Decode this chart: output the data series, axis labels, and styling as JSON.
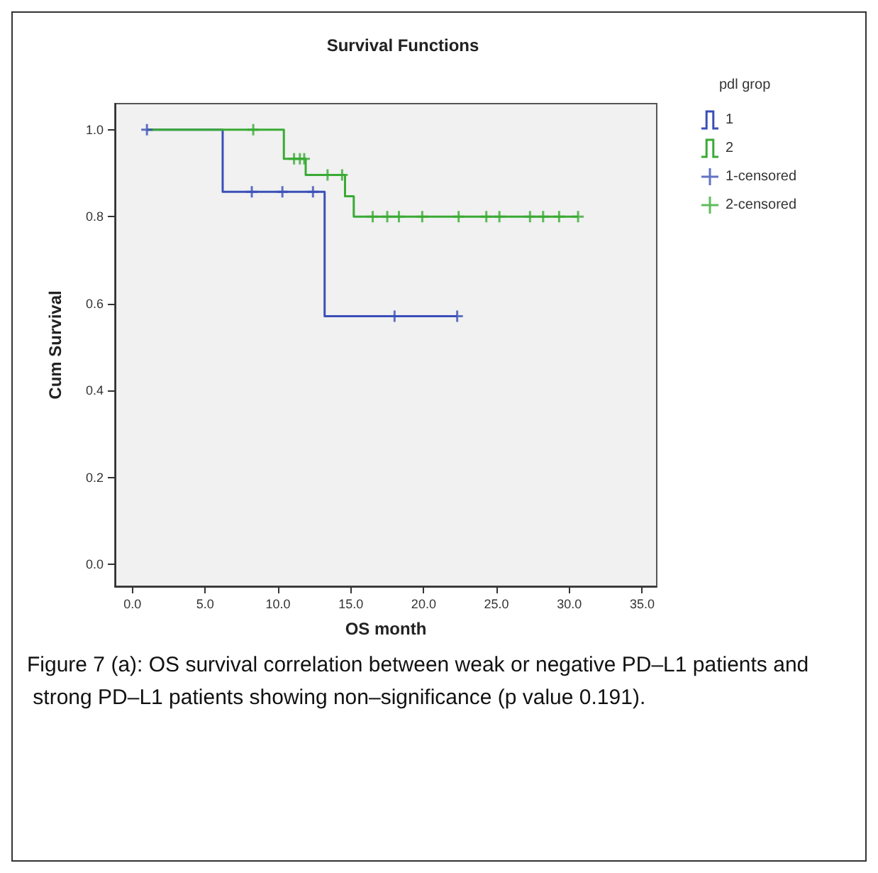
{
  "chart_data": {
    "type": "step",
    "title": "Survival Functions",
    "xlabel": "OS month",
    "ylabel": "Cum Survival",
    "legend_title": "pdl grop",
    "legend": "top right",
    "grid": false,
    "xlim": [
      -1.2,
      36
    ],
    "xticks": [
      {
        "value": 0,
        "label": "0.0"
      },
      {
        "value": 5,
        "label": "5.0"
      },
      {
        "value": 10,
        "label": "10.0"
      },
      {
        "value": 15,
        "label": "15.0"
      },
      {
        "value": 20,
        "label": "20.0"
      },
      {
        "value": 25,
        "label": "25.0"
      },
      {
        "value": 30,
        "label": "30.0"
      },
      {
        "value": 35,
        "label": "35.0"
      }
    ],
    "ylim": [
      -0.05,
      1.06
    ],
    "yticks": [
      {
        "value": 0,
        "label": "0.0"
      },
      {
        "value": 0.2,
        "label": "0.2"
      },
      {
        "value": 0.4,
        "label": "0.4"
      },
      {
        "value": 0.6,
        "label": "0.6"
      },
      {
        "value": 0.8,
        "label": "0.8"
      },
      {
        "value": 1,
        "label": "1.0"
      }
    ],
    "series": [
      {
        "name": "1",
        "color": "#3b4fb8",
        "marker": "none",
        "x": [
          1.0,
          6.2,
          13.2,
          22.3
        ],
        "values": [
          1,
          0.857,
          0.571,
          0.571
        ]
      },
      {
        "name": "2",
        "color": "#3aaa35",
        "marker": "none",
        "x": [
          1.0,
          10.4,
          11.9,
          14.6,
          15.2,
          30.6
        ],
        "values": [
          1,
          0.933,
          0.896,
          0.847,
          0.8,
          0.8
        ]
      },
      {
        "name": "1-censored",
        "type": "scatter",
        "color": "#3b4fb8",
        "marker": "cross",
        "x": [
          1.0,
          8.2,
          10.3,
          12.4,
          18.0,
          22.3
        ],
        "values": [
          1,
          0.857,
          0.857,
          0.857,
          0.571,
          0.571
        ]
      },
      {
        "name": "2-censored",
        "type": "scatter",
        "color": "#3aaa35",
        "marker": "cross",
        "x": [
          8.3,
          11.1,
          11.5,
          11.8,
          13.4,
          14.4,
          16.5,
          17.5,
          18.3,
          19.9,
          22.4,
          24.3,
          25.2,
          27.3,
          28.2,
          29.3,
          30.6
        ],
        "values": [
          1,
          0.933,
          0.933,
          0.933,
          0.896,
          0.896,
          0.8,
          0.8,
          0.8,
          0.8,
          0.8,
          0.8,
          0.8,
          0.8,
          0.8,
          0.8,
          0.8
        ]
      }
    ],
    "annotations": [
      "Figure 7 (a): OS survival correlation between weak or negative PD–L1 patients and strong PD–L1 patients showing non–significance (p value 0.191)."
    ]
  }
}
